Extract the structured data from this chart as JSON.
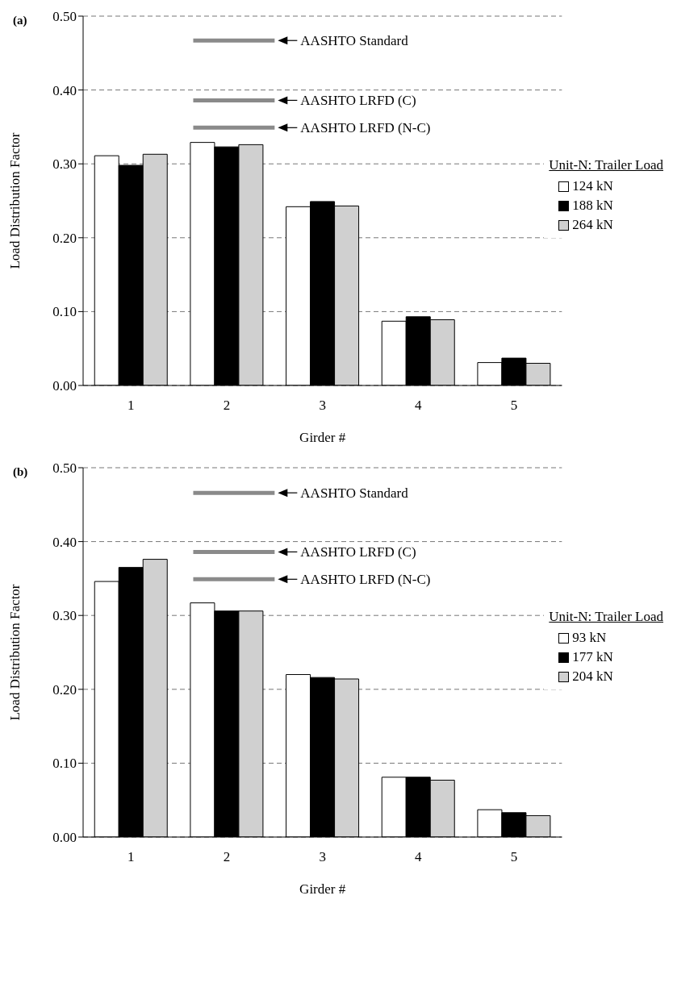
{
  "chart_data": [
    {
      "type": "bar",
      "xlabel": "Girder #",
      "ylabel": "Load Distribution Factor",
      "legend_title": "Unit-N:  Trailer Load",
      "annotations": [
        "(a)"
      ],
      "categories": [
        "1",
        "2",
        "3",
        "4",
        "5"
      ],
      "series": [
        {
          "name": "124 kN",
          "color": "#ffffff",
          "values": [
            0.311,
            0.329,
            0.242,
            0.087,
            0.031
          ]
        },
        {
          "name": "188 kN",
          "color": "#000000",
          "values": [
            0.298,
            0.323,
            0.249,
            0.093,
            0.037
          ]
        },
        {
          "name": "264 kN",
          "color": "#d0d0d0",
          "values": [
            0.313,
            0.326,
            0.243,
            0.089,
            0.03
          ]
        }
      ],
      "ylim": [
        0,
        0.5
      ],
      "yticks": [
        {
          "value": 0,
          "label": "0.00"
        },
        {
          "value": 0.1,
          "label": "0.10"
        },
        {
          "value": 0.2,
          "label": "0.20"
        },
        {
          "value": 0.3,
          "label": "0.30"
        },
        {
          "value": 0.4,
          "label": "0.40"
        },
        {
          "value": 0.5,
          "label": "0.50"
        }
      ],
      "ref_lines": [
        {
          "axis": "y",
          "value": 0.467,
          "label": "AASHTO Standard",
          "color": "#8a8a8a"
        },
        {
          "axis": "y",
          "value": 0.386,
          "label": "AASHTO LRFD (C)",
          "color": "#8a8a8a"
        },
        {
          "axis": "y",
          "value": 0.349,
          "label": "AASHTO LRFD (N-C)",
          "color": "#8a8a8a"
        }
      ],
      "grid": "y",
      "legend": "right"
    },
    {
      "type": "bar",
      "xlabel": "Girder #",
      "ylabel": "Load Distribution Factor",
      "legend_title": "Unit-N:  Trailer Load",
      "annotations": [
        "(b)"
      ],
      "categories": [
        "1",
        "2",
        "3",
        "4",
        "5"
      ],
      "series": [
        {
          "name": "93 kN",
          "color": "#ffffff",
          "values": [
            0.346,
            0.317,
            0.22,
            0.081,
            0.037
          ]
        },
        {
          "name": "177 kN",
          "color": "#000000",
          "values": [
            0.365,
            0.306,
            0.216,
            0.081,
            0.033
          ]
        },
        {
          "name": "204 kN",
          "color": "#d0d0d0",
          "values": [
            0.376,
            0.306,
            0.214,
            0.077,
            0.029
          ]
        }
      ],
      "ylim": [
        0,
        0.5
      ],
      "yticks": [
        {
          "value": 0,
          "label": "0.00"
        },
        {
          "value": 0.1,
          "label": "0.10"
        },
        {
          "value": 0.2,
          "label": "0.20"
        },
        {
          "value": 0.3,
          "label": "0.30"
        },
        {
          "value": 0.4,
          "label": "0.40"
        },
        {
          "value": 0.5,
          "label": "0.50"
        }
      ],
      "ref_lines": [
        {
          "axis": "y",
          "value": 0.466,
          "label": "AASHTO Standard",
          "color": "#8a8a8a"
        },
        {
          "axis": "y",
          "value": 0.386,
          "label": "AASHTO LRFD (C)",
          "color": "#8a8a8a"
        },
        {
          "axis": "y",
          "value": 0.349,
          "label": "AASHTO LRFD (N-C)",
          "color": "#8a8a8a"
        }
      ],
      "grid": "y",
      "legend": "right"
    }
  ]
}
